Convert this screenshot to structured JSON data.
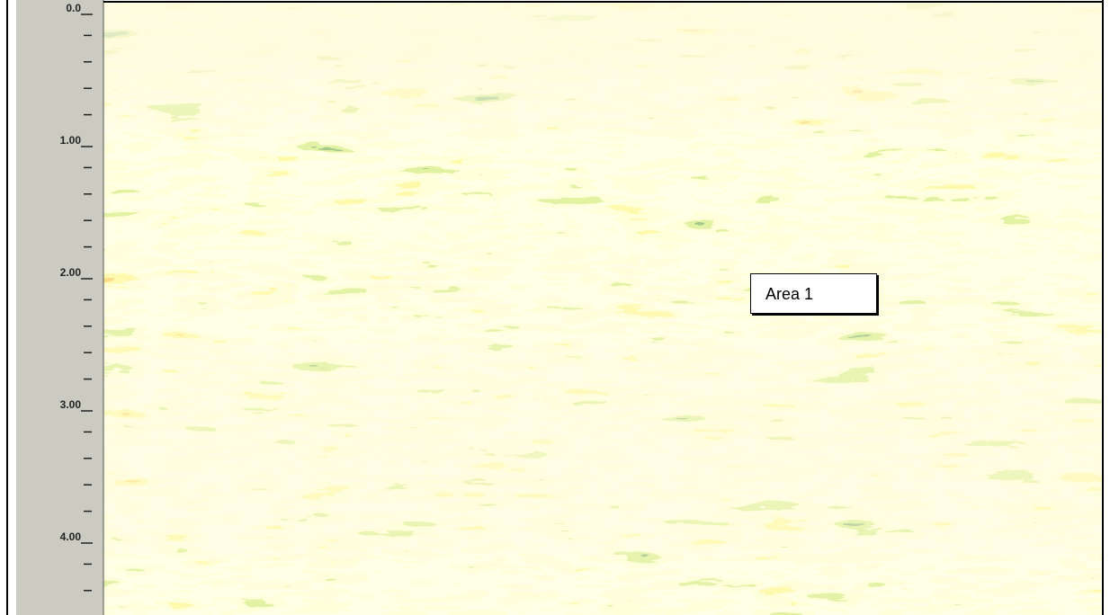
{
  "axis": {
    "ticks": [
      {
        "value": 0,
        "label": "0.0"
      },
      {
        "value": 1,
        "label": "1.00"
      },
      {
        "value": 2,
        "label": "2.00"
      },
      {
        "value": 3,
        "label": "3.00"
      },
      {
        "value": 4,
        "label": "4.00"
      }
    ]
  },
  "annotation": "Area 1"
}
